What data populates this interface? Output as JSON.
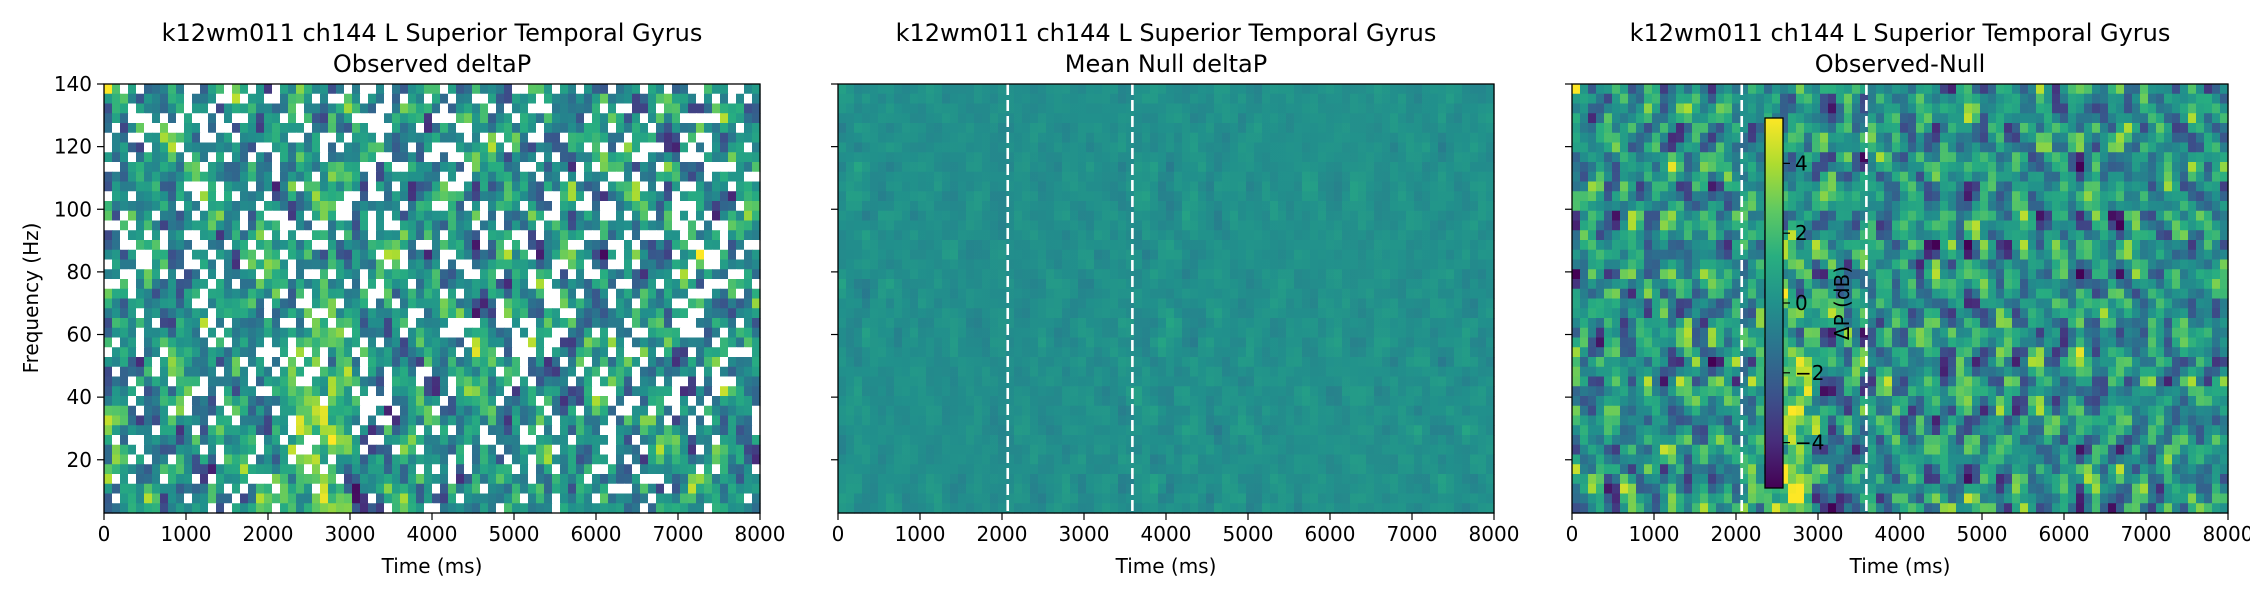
{
  "chart_data": [
    {
      "type": "heatmap",
      "title_line1": "k12wm011 ch144 L Superior Temporal Gyrus",
      "title_line2": "Observed deltaP",
      "xlabel": "Time (ms)",
      "ylabel": "Frequency (Hz)",
      "xlim": [
        0,
        8000
      ],
      "ylim": [
        3,
        140
      ],
      "xticks": [
        "0",
        "1000",
        "2000",
        "3000",
        "4000",
        "5000",
        "6000",
        "7000",
        "8000"
      ],
      "yticks": [
        "20",
        "40",
        "60",
        "80",
        "100",
        "120",
        "140"
      ],
      "ytick_values": [
        20,
        40,
        60,
        80,
        100,
        120,
        140
      ],
      "event_lines_ms": [],
      "colormap": "viridis",
      "masked_color": "#ffffff"
    },
    {
      "type": "heatmap",
      "title_line1": "k12wm011 ch144 L Superior Temporal Gyrus",
      "title_line2": "Mean Null deltaP",
      "xlabel": "Time (ms)",
      "ylabel": "",
      "xlim": [
        0,
        8000
      ],
      "ylim": [
        3,
        140
      ],
      "xticks": [
        "0",
        "1000",
        "2000",
        "3000",
        "4000",
        "5000",
        "6000",
        "7000",
        "8000"
      ],
      "yticks": [],
      "ytick_values": [
        20,
        40,
        60,
        80,
        100,
        120,
        140
      ],
      "event_lines_ms": [
        2070,
        3590
      ],
      "colormap": "viridis"
    },
    {
      "type": "heatmap",
      "title_line1": "k12wm011 ch144 L Superior Temporal Gyrus",
      "title_line2": "Observed-Null",
      "xlabel": "Time (ms)",
      "ylabel": "",
      "xlim": [
        0,
        8000
      ],
      "ylim": [
        3,
        140
      ],
      "xticks": [
        "0",
        "1000",
        "2000",
        "3000",
        "4000",
        "5000",
        "6000",
        "7000",
        "8000"
      ],
      "yticks": [],
      "ytick_values": [
        20,
        40,
        60,
        80,
        100,
        120,
        140
      ],
      "event_lines_ms": [
        2070,
        3590
      ],
      "colormap": "viridis",
      "colorbar": {
        "label": "ΔP (dB)",
        "range": [
          -5.3,
          5.3
        ],
        "ticks": [
          4,
          2,
          0,
          -2,
          -4
        ],
        "tick_labels": [
          "4",
          "2",
          "0",
          "−2",
          "−4"
        ]
      }
    }
  ]
}
